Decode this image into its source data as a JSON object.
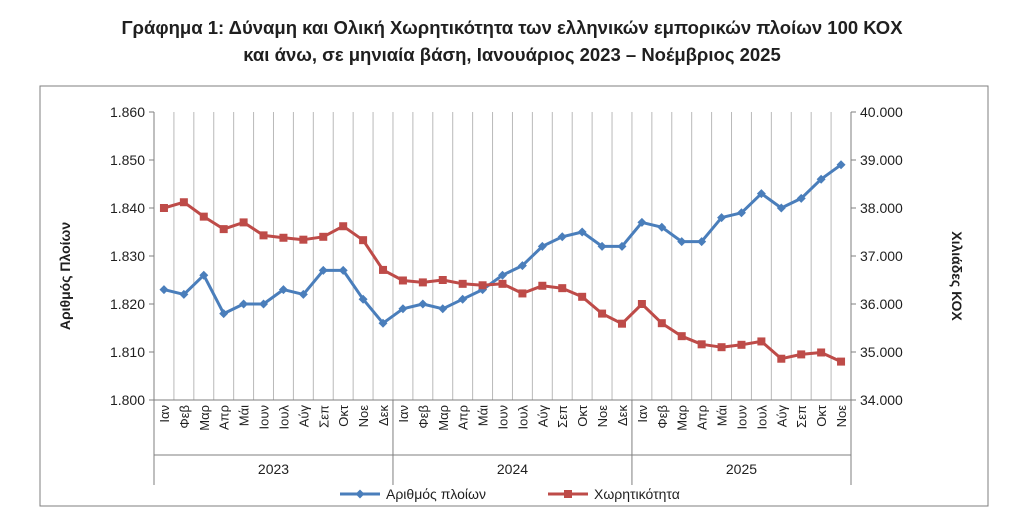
{
  "title_line1": "Γράφημα 1: Δύναμη και Ολική Χωρητικότητα των ελληνικών εμπορικών πλοίων 100 ΚΟΧ",
  "title_line2": "και άνω, σε μηνιαία βάση, Ιανουάριος 2023 – Νοέμβριος 2025",
  "chart_data": {
    "type": "line",
    "categories": [
      "Ιαν",
      "Φεβ",
      "Μαρ",
      "Απρ",
      "Μάι",
      "Ιουν",
      "Ιουλ",
      "Αύγ",
      "Σεπ",
      "Οκτ",
      "Νοε",
      "Δεκ",
      "Ιαν",
      "Φεβ",
      "Μαρ",
      "Απρ",
      "Μάι",
      "Ιουν",
      "Ιουλ",
      "Αύγ",
      "Σεπ",
      "Οκτ",
      "Νοε",
      "Δεκ",
      "Ιαν",
      "Φεβ",
      "Μαρ",
      "Απρ",
      "Μάι",
      "Ιουν",
      "Ιουλ",
      "Αύγ",
      "Σεπ",
      "Οκτ",
      "Νοε"
    ],
    "years": [
      {
        "label": "2023",
        "start": 0,
        "end": 11
      },
      {
        "label": "2024",
        "start": 12,
        "end": 23
      },
      {
        "label": "2025",
        "start": 24,
        "end": 34
      }
    ],
    "y_left": {
      "label": "Αριθμός Πλοίων",
      "min": 1800,
      "max": 1860,
      "step": 10,
      "ticks": [
        "1.800",
        "1.810",
        "1.820",
        "1.830",
        "1.840",
        "1.850",
        "1.860"
      ]
    },
    "y_right": {
      "label": "Χιλιάδες ΚΟΧ",
      "min": 34000,
      "max": 40000,
      "step": 1000,
      "ticks": [
        "34.000",
        "35.000",
        "36.000",
        "37.000",
        "38.000",
        "39.000",
        "40.000"
      ]
    },
    "grid": "vertical",
    "legend": "bottom",
    "series": [
      {
        "name": "Αριθμός πλοίων",
        "axis": "left",
        "color": "#4a7ebb",
        "marker": "diamond",
        "values": [
          1823,
          1822,
          1826,
          1818,
          1820,
          1820,
          1823,
          1822,
          1827,
          1827,
          1821,
          1816,
          1819,
          1820,
          1819,
          1821,
          1823,
          1826,
          1828,
          1832,
          1834,
          1835,
          1832,
          1832,
          1837,
          1836,
          1833,
          1833,
          1838,
          1839,
          1843,
          1840,
          1842,
          1846,
          1849
        ]
      },
      {
        "name": "Χωρητικότητα",
        "axis": "right",
        "color": "#be4b48",
        "marker": "square",
        "values": [
          38000,
          38120,
          37820,
          37560,
          37700,
          37430,
          37380,
          37340,
          37400,
          37620,
          37330,
          36710,
          36490,
          36450,
          36500,
          36420,
          36390,
          36420,
          36220,
          36380,
          36330,
          36150,
          35800,
          35590,
          36000,
          35600,
          35330,
          35160,
          35100,
          35150,
          35220,
          34860,
          34950,
          34990,
          34800
        ]
      }
    ]
  }
}
